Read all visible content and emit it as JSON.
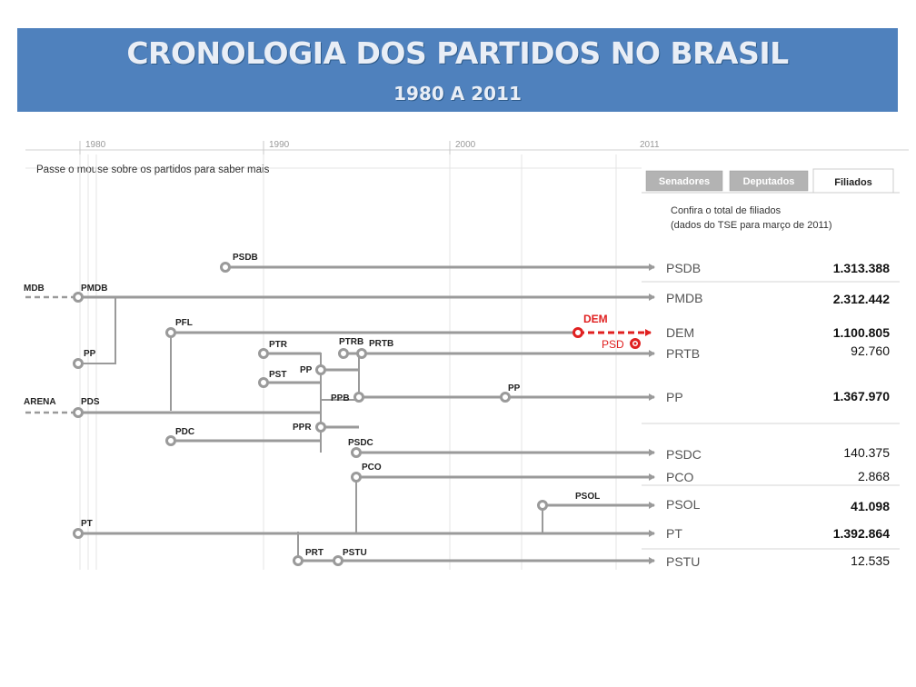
{
  "header": {
    "title": "CRONOLOGIA DOS PARTIDOS NO BRASIL",
    "subtitle": "1980 A 2011"
  },
  "timeline": {
    "years": [
      "1980",
      "1990",
      "2000",
      "2011"
    ],
    "hint": "Passe o mouse sobre os partidos para saber mais"
  },
  "tabs": [
    {
      "label": "Senadores",
      "active": false
    },
    {
      "label": "Deputados",
      "active": false
    },
    {
      "label": "Filiados",
      "active": true
    }
  ],
  "note": {
    "line1": "Confira o total de filiados",
    "line2": "(dados do TSE para março de 2011)"
  },
  "predecessors": {
    "mdb": "MDB",
    "arena": "ARENA"
  },
  "party_labels": {
    "psdb": "PSDB",
    "pmdb": "PMDB",
    "pfl": "PFL",
    "dem": "DEM",
    "psd": "PSD",
    "pp1": "PP",
    "ptr": "PTR",
    "ptrb1": "PTRB",
    "prtb": "PRTB",
    "pst": "PST",
    "pp2": "PP",
    "pds": "PDS",
    "ppb": "PPB",
    "pp3": "PP",
    "ppr": "PPR",
    "pdc": "PDC",
    "psdc": "PSDC",
    "pco": "PCO",
    "psol": "PSOL",
    "pt": "PT",
    "prt": "PRT",
    "pstu": "PSTU"
  },
  "end_rows": [
    {
      "label": "PSDB",
      "count": "1.313.388",
      "bold": true
    },
    {
      "label": "PMDB",
      "count": "2.312.442",
      "bold": true
    },
    {
      "label": "DEM",
      "count": "1.100.805",
      "bold": true
    },
    {
      "label": "PRTB",
      "count": "92.760",
      "bold": false
    },
    {
      "label": "PP",
      "count": "1.367.970",
      "bold": true
    },
    {
      "label": "PSDC",
      "count": "140.375",
      "bold": false
    },
    {
      "label": "PCO",
      "count": "2.868",
      "bold": false
    },
    {
      "label": "PSOL",
      "count": "41.098",
      "bold": true
    },
    {
      "label": "PT",
      "count": "1.392.864",
      "bold": true
    },
    {
      "label": "PSTU",
      "count": "12.535",
      "bold": false
    }
  ],
  "colors": {
    "line": "#9a9a9a",
    "accent_red": "#e02020",
    "banner": "#4f81bd"
  }
}
